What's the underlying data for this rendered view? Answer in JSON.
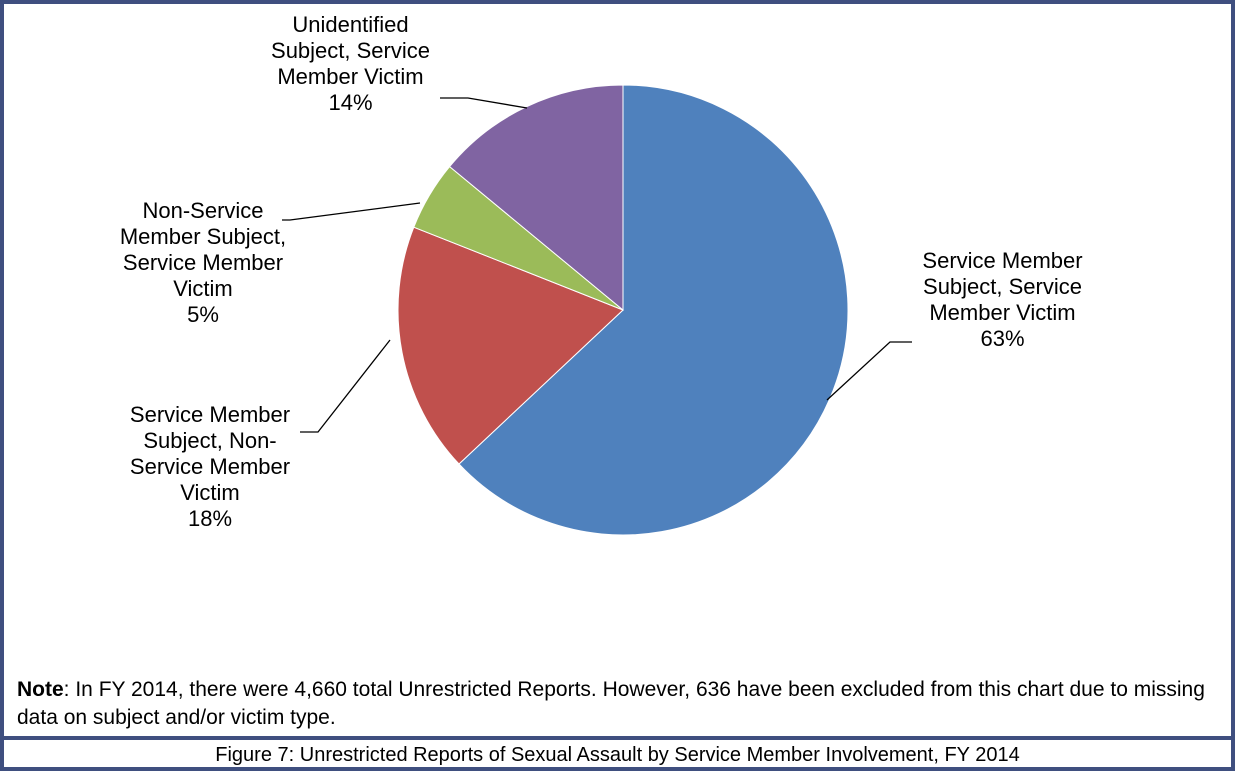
{
  "chart_data": {
    "type": "pie",
    "categories": [
      "Service Member Subject, Service Member Victim",
      "Service Member Subject, Non-Service Member Victim",
      "Non-Service Member Subject, Service Member Victim",
      "Unidentified Subject, Service Member Victim"
    ],
    "values": [
      63,
      18,
      5,
      14
    ],
    "value_labels": [
      "63%",
      "18%",
      "5%",
      "14%"
    ],
    "colors": [
      "#4f81bd",
      "#c0504d",
      "#9bbb59",
      "#8064a2"
    ]
  },
  "note": {
    "label": "Note",
    "text": ": In FY 2014, there were 4,660 total Unrestricted Reports.  However, 636 have been excluded from this chart due to missing data on subject and/or victim type."
  },
  "caption": "Figure 7: Unrestricted Reports of Sexual Assault by Service Member Involvement, FY 2014"
}
